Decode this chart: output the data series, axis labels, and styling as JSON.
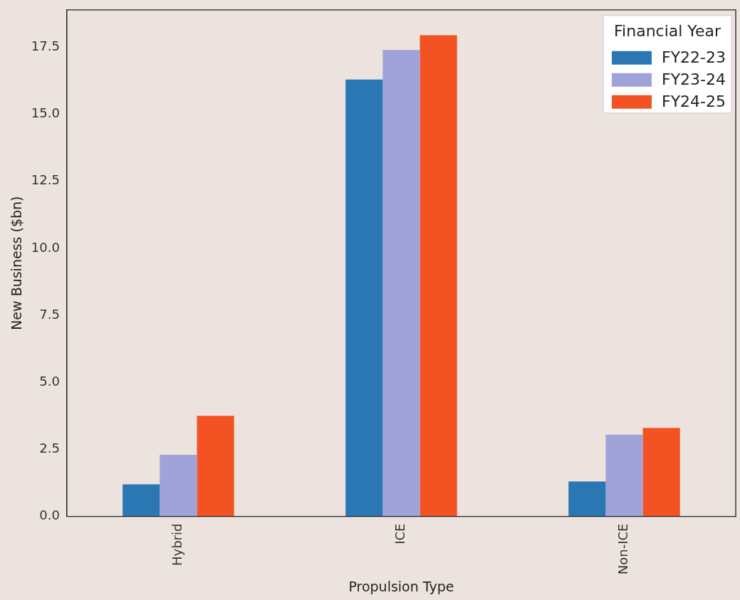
{
  "chart_data": {
    "type": "bar",
    "xlabel": "Propulsion Type",
    "ylabel": "New Business ($bn)",
    "legend_title": "Financial Year",
    "legend": "top right",
    "grid": false,
    "categories": [
      "Hybrid",
      "ICE",
      "Non-ICE"
    ],
    "series": [
      {
        "name": "FY22-23",
        "color": "#2a77b4",
        "values": [
          1.2,
          16.3,
          1.3
        ]
      },
      {
        "name": "FY23-24",
        "color": "#a0a3d9",
        "values": [
          2.3,
          17.4,
          3.05
        ]
      },
      {
        "name": "FY24-25",
        "color": "#f35222",
        "values": [
          3.75,
          17.95,
          3.3
        ]
      }
    ],
    "ylim": [
      0,
      18.9
    ],
    "yticks": [
      {
        "value": 0,
        "label": "0.0"
      },
      {
        "value": 2.5,
        "label": "2.5"
      },
      {
        "value": 5,
        "label": "5.0"
      },
      {
        "value": 7.5,
        "label": "7.5"
      },
      {
        "value": 10,
        "label": "10.0"
      },
      {
        "value": 12.5,
        "label": "12.5"
      },
      {
        "value": 15,
        "label": "15.0"
      },
      {
        "value": 17.5,
        "label": "17.5"
      }
    ]
  }
}
